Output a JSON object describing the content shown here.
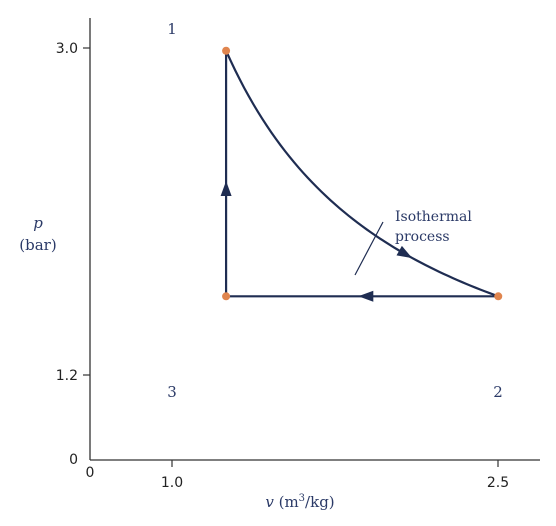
{
  "chart_data": {
    "type": "line",
    "xlabel": {
      "var": "v",
      "unit_pre": " (m",
      "sup": "3",
      "unit_post": "/kg)"
    },
    "ylabel": {
      "var": "p",
      "unit": "(bar)"
    },
    "x_ticks": [
      "1.0",
      "2.5"
    ],
    "y_ticks": [
      "3.0",
      "1.2",
      "0"
    ],
    "origin_label": "0",
    "xlim": [
      0.25,
      2.73
    ],
    "ylim": [
      0,
      3.24
    ],
    "states": [
      {
        "name": "1",
        "v": 1.0,
        "p": 3.0
      },
      {
        "name": "2",
        "v": 2.5,
        "p": 1.2
      },
      {
        "name": "3",
        "v": 1.0,
        "p": 1.2
      }
    ],
    "processes": [
      {
        "from": "1",
        "to": "2",
        "kind": "isothermal",
        "pv_const": 3.0
      },
      {
        "from": "2",
        "to": "3",
        "kind": "constant-pressure"
      },
      {
        "from": "3",
        "to": "1",
        "kind": "constant-volume"
      }
    ],
    "annotation": {
      "line1": "Isothermal",
      "line2": "process"
    },
    "colors": {
      "line": "#1f2d52",
      "point": "#e0854e",
      "text": "#2b3a67",
      "axis": "#333333"
    }
  }
}
